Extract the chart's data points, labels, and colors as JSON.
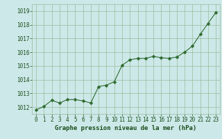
{
  "x": [
    0,
    1,
    2,
    3,
    4,
    5,
    6,
    7,
    8,
    9,
    10,
    11,
    12,
    13,
    14,
    15,
    16,
    17,
    18,
    19,
    20,
    21,
    22,
    23
  ],
  "y": [
    1011.8,
    1012.05,
    1012.5,
    1012.3,
    1012.55,
    1012.55,
    1012.45,
    1012.3,
    1013.5,
    1013.6,
    1013.85,
    1015.05,
    1015.45,
    1015.55,
    1015.55,
    1015.7,
    1015.6,
    1015.55,
    1015.65,
    1016.0,
    1016.45,
    1017.3,
    1018.1,
    1018.9
  ],
  "line_color": "#2d6a2d",
  "marker_color": "#2d6a2d",
  "bg_color": "#cce8e8",
  "grid_color": "#99bb99",
  "xlabel": "Graphe pression niveau de la mer (hPa)",
  "xlabel_color": "#1a4d1a",
  "tick_color": "#1a4d1a",
  "ylim": [
    1011.5,
    1019.5
  ],
  "yticks": [
    1012,
    1013,
    1014,
    1015,
    1016,
    1017,
    1018,
    1019
  ],
  "xlim": [
    -0.5,
    23.5
  ],
  "xticks": [
    0,
    1,
    2,
    3,
    4,
    5,
    6,
    7,
    8,
    9,
    10,
    11,
    12,
    13,
    14,
    15,
    16,
    17,
    18,
    19,
    20,
    21,
    22,
    23
  ],
  "font_size_xlabel": 6.5,
  "font_size_ticks": 5.5,
  "line_width": 0.8,
  "marker_size": 2.5
}
